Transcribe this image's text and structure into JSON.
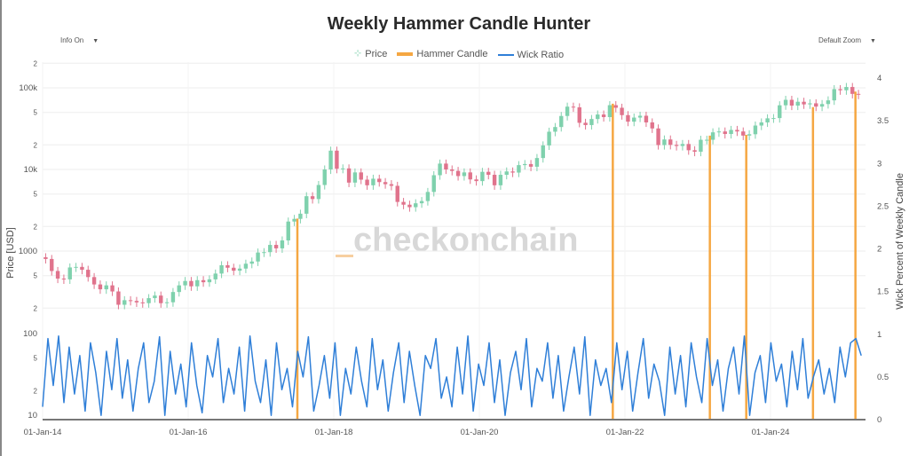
{
  "title": "Weekly Hammer Candle Hunter",
  "controls": {
    "info": "Info On",
    "zoom": "Default Zoom",
    "arrow": "▼"
  },
  "watermark": "checkonchain",
  "colors": {
    "up": "#7fd1ad",
    "down": "#e0738c",
    "hammer": "#f5a742",
    "wick": "#2f7fd8",
    "grid": "#eeeeee"
  },
  "chart_data": {
    "type": "line",
    "title": "Weekly Hammer Candle Hunter",
    "legend": {
      "placement": "top-center",
      "entries": [
        "Price",
        "Hammer Candle",
        "Wick Ratio"
      ]
    },
    "x_ticks": [
      "01-Jan-14",
      "01-Jan-16",
      "01-Jan-18",
      "01-Jan-20",
      "01-Jan-22",
      "01-Jan-24"
    ],
    "x_range": [
      "2014-01",
      "2025-03"
    ],
    "left_axis": {
      "label": "Price [USD]",
      "scale": "log",
      "ticks": [
        "2",
        "100k",
        "5",
        "2",
        "10k",
        "5",
        "2",
        "1000",
        "5",
        "2"
      ],
      "range": [
        150,
        250000
      ]
    },
    "left_lower_axis": {
      "scale": "log",
      "ticks": [
        "100",
        "5",
        "2",
        "10"
      ]
    },
    "right_axis": {
      "label": "Wick Percent of Weekly Candle",
      "ticks": [
        "4",
        "3.5",
        "3",
        "2.5",
        "2",
        "1.5",
        "1",
        "0.5",
        "0"
      ],
      "range": [
        0,
        4
      ]
    },
    "grid": true,
    "price_monthly_start": "2014-01",
    "price_monthly_close": [
      800,
      570,
      460,
      450,
      630,
      640,
      590,
      480,
      390,
      340,
      380,
      320,
      220,
      250,
      245,
      235,
      230,
      265,
      285,
      230,
      236,
      315,
      380,
      430,
      370,
      440,
      415,
      450,
      530,
      670,
      625,
      575,
      610,
      700,
      745,
      960,
      970,
      1190,
      1080,
      1350,
      2300,
      2480,
      2870,
      4700,
      4340,
      6450,
      10000,
      17000,
      10200,
      10300,
      6900,
      9200,
      7500,
      6400,
      7700,
      7000,
      6600,
      6300,
      4000,
      3700,
      3450,
      3850,
      4100,
      5300,
      8500,
      11800,
      10000,
      9600,
      8300,
      9200,
      7550,
      7200,
      9350,
      8600,
      6400,
      8600,
      9450,
      9150,
      11300,
      11650,
      10800,
      13800,
      19700,
      29000,
      33100,
      45200,
      58800,
      57700,
      37300,
      35000,
      41500,
      47100,
      43800,
      61300,
      57000,
      46300,
      38500,
      43200,
      45500,
      37700,
      31800,
      19900,
      23300,
      20000,
      19400,
      20500,
      17200,
      16500,
      23100,
      23100,
      28500,
      29200,
      27200,
      30500,
      29200,
      26000,
      27000,
      34500,
      37700,
      42300,
      42600,
      61100,
      71300,
      60600,
      67500,
      62700,
      64600,
      58900,
      63300,
      70200,
      96400,
      93400,
      102400,
      84300,
      82500
    ],
    "wick_ratio": [
      0.15,
      0.95,
      0.4,
      0.98,
      0.2,
      0.85,
      0.3,
      0.75,
      0.1,
      0.9,
      0.55,
      0.05,
      0.8,
      0.35,
      0.95,
      0.25,
      0.7,
      0.1,
      0.6,
      0.9,
      0.2,
      0.45,
      0.97,
      0.05,
      0.8,
      0.3,
      0.65,
      0.15,
      0.9,
      0.4,
      0.08,
      0.75,
      0.5,
      0.95,
      0.2,
      0.6,
      0.3,
      0.85,
      0.1,
      0.98,
      0.45,
      0.2,
      0.7,
      0.05,
      0.9,
      0.35,
      0.6,
      0.15,
      0.8,
      0.5,
      0.97,
      0.1,
      0.4,
      0.75,
      0.25,
      0.9,
      0.05,
      0.6,
      0.3,
      0.85,
      0.45,
      0.15,
      0.95,
      0.35,
      0.7,
      0.1,
      0.55,
      0.9,
      0.2,
      0.8,
      0.4,
      0.05,
      0.75,
      0.6,
      0.95,
      0.25,
      0.5,
      0.15,
      0.85,
      0.3,
      0.98,
      0.1,
      0.65,
      0.4,
      0.9,
      0.2,
      0.7,
      0.05,
      0.55,
      0.8,
      0.35,
      0.95,
      0.15,
      0.6,
      0.45,
      0.9,
      0.25,
      0.75,
      0.1,
      0.5,
      0.85,
      0.3,
      0.97,
      0.05,
      0.7,
      0.4,
      0.6,
      0.2,
      0.9,
      0.35,
      0.8,
      0.1,
      0.55,
      0.95,
      0.25,
      0.65,
      0.45,
      0.05,
      0.85,
      0.3,
      0.75,
      0.15,
      0.9,
      0.5,
      0.2,
      0.95,
      0.4,
      0.7,
      0.1,
      0.6,
      0.85,
      0.3,
      0.98,
      0.05,
      0.55,
      0.75,
      0.2,
      0.9,
      0.45,
      0.65,
      0.15,
      0.8,
      0.35,
      0.95,
      0.25,
      0.5,
      0.7,
      0.3,
      0.6,
      0.2,
      0.85,
      0.5,
      0.9,
      0.95,
      0.75
    ],
    "hammer_candles": [
      {
        "date": "2017-07",
        "price": 2500
      },
      {
        "date": "2021-11",
        "price": 64000
      },
      {
        "date": "2023-03",
        "price": 26000
      },
      {
        "date": "2023-09",
        "price": 26500
      },
      {
        "date": "2024-08",
        "price": 58000
      },
      {
        "date": "2025-03",
        "price": 90000
      }
    ]
  }
}
